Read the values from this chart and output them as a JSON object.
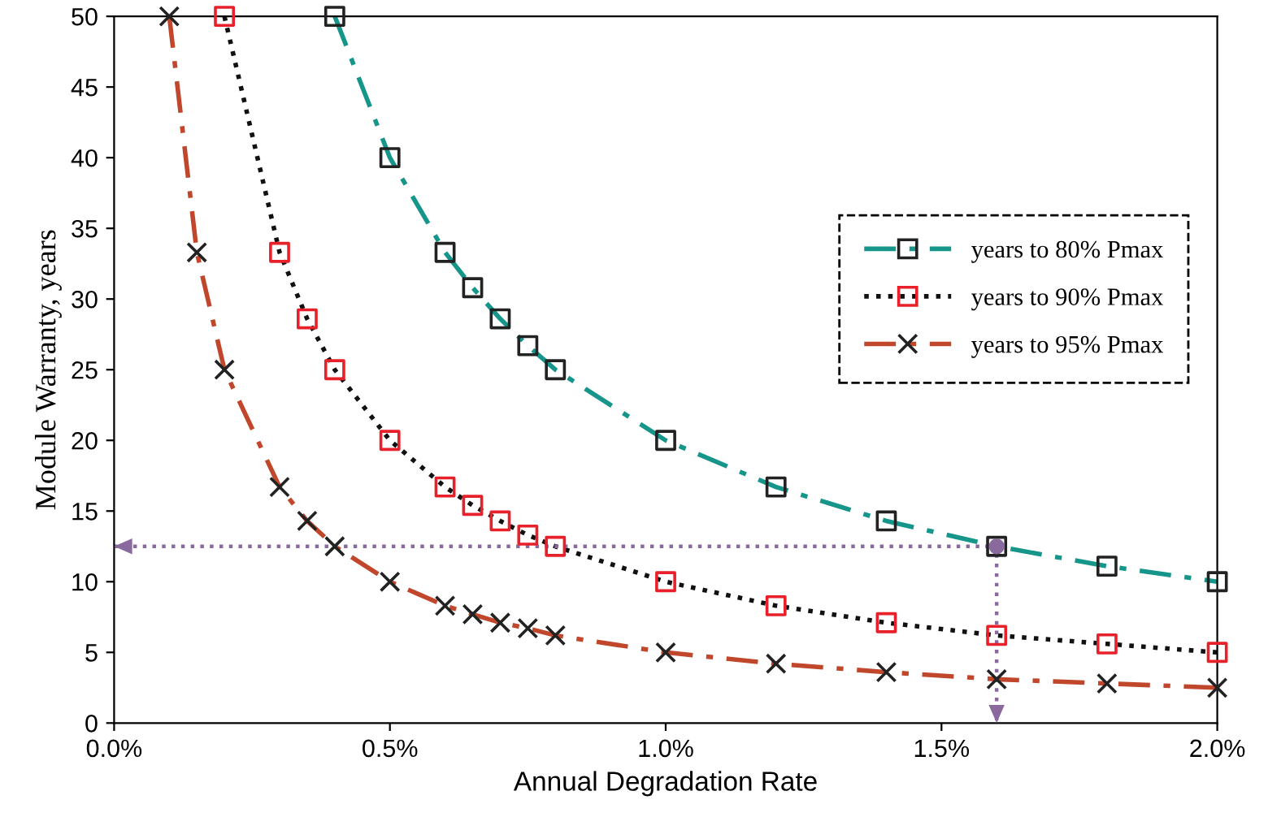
{
  "chart_data": {
    "type": "line",
    "xlabel": "Annual Degradation Rate",
    "ylabel": "Module Warranty, years",
    "xlim": [
      0,
      2
    ],
    "xticks": [
      {
        "value": 0,
        "label": "0.0%"
      },
      {
        "value": 0.5,
        "label": "0.5%"
      },
      {
        "value": 1,
        "label": "1.0%"
      },
      {
        "value": 1.5,
        "label": "1.5%"
      },
      {
        "value": 2,
        "label": "2.0%"
      }
    ],
    "ylim": [
      0,
      50
    ],
    "yticks": [
      0,
      5,
      10,
      15,
      20,
      25,
      30,
      35,
      40,
      45,
      50
    ],
    "grid": false,
    "legend": "right",
    "series": [
      {
        "name": "years to 80% Pmax",
        "color": "#16968a",
        "colors": [
          "#222222",
          "#222222",
          "#222222",
          "#222222",
          "#222222",
          "#222222",
          "#222222",
          "#222222",
          "#222222",
          "#222222",
          "#222222",
          "#222222",
          "#222222"
        ],
        "marker": "square",
        "line_style": "dashdot",
        "x": [
          0.4,
          0.5,
          0.6,
          0.65,
          0.7,
          0.75,
          0.8,
          1.0,
          1.2,
          1.4,
          1.6,
          1.8,
          2.0
        ],
        "values": [
          50,
          40,
          33.3,
          30.8,
          28.6,
          26.7,
          25,
          20,
          16.7,
          14.3,
          12.5,
          11.1,
          10
        ]
      },
      {
        "name": "years to 90% Pmax",
        "color": "#111111",
        "colors": [
          "#e8202a",
          "#e8202a",
          "#e8202a",
          "#e8202a",
          "#e8202a",
          "#e8202a",
          "#e8202a",
          "#e8202a",
          "#e8202a",
          "#e8202a",
          "#e8202a",
          "#e8202a",
          "#e8202a",
          "#e8202a",
          "#e8202a",
          "#e8202a"
        ],
        "marker": "square",
        "line_style": "dotted",
        "x": [
          0.2,
          0.3,
          0.35,
          0.4,
          0.5,
          0.6,
          0.65,
          0.7,
          0.75,
          0.8,
          1.0,
          1.2,
          1.4,
          1.6,
          1.8,
          2.0
        ],
        "values": [
          50,
          33.3,
          28.6,
          25,
          20,
          16.7,
          15.4,
          14.3,
          13.3,
          12.5,
          10,
          8.3,
          7.1,
          6.2,
          5.6,
          5
        ]
      },
      {
        "name": "years to 95% Pmax",
        "color": "#c0472c",
        "colors": [
          "#222222",
          "#222222",
          "#222222",
          "#222222",
          "#222222",
          "#222222",
          "#222222",
          "#222222",
          "#222222",
          "#222222",
          "#222222",
          "#222222",
          "#222222",
          "#222222",
          "#222222",
          "#222222",
          "#222222",
          "#222222"
        ],
        "marker": "cross",
        "line_style": "dashdot",
        "x": [
          0.1,
          0.15,
          0.2,
          0.3,
          0.35,
          0.4,
          0.5,
          0.6,
          0.65,
          0.7,
          0.75,
          0.8,
          1.0,
          1.2,
          1.4,
          1.6,
          1.8,
          2.0
        ],
        "values": [
          50,
          33.3,
          25,
          16.7,
          14.3,
          12.5,
          10,
          8.3,
          7.7,
          7.1,
          6.7,
          6.2,
          5,
          4.2,
          3.6,
          3.1,
          2.8,
          2.5
        ]
      },
      {
        "color": "#8a6a9e",
        "marker": "none",
        "line_style": "dotted",
        "x": [
          0,
          1.6,
          1.6
        ],
        "values": [
          12.5,
          12.5,
          0
        ]
      }
    ]
  }
}
